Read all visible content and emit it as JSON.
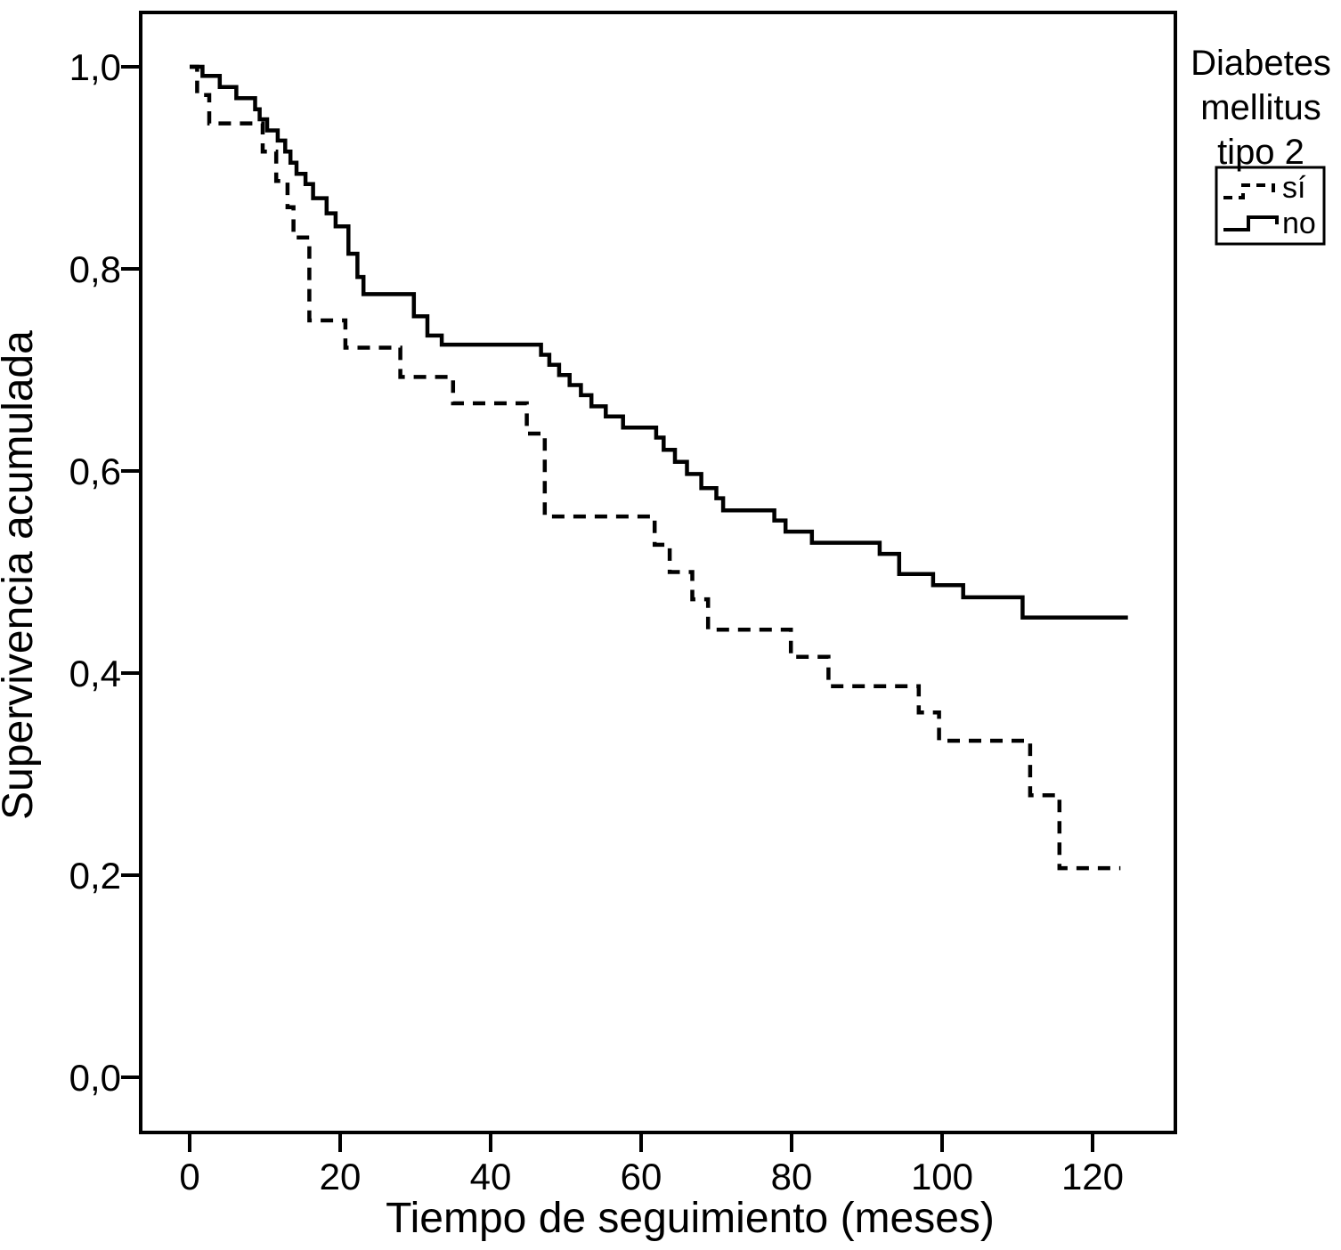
{
  "figure": {
    "background": "#ffffff",
    "foreground": "#000000"
  },
  "chart_data": {
    "type": "line",
    "subtype": "kaplan_meier_step",
    "title": "",
    "xlabel": "Tiempo de seguimiento (meses)",
    "ylabel": "Supervivencia acumulada",
    "xlim": [
      -6.5,
      131
    ],
    "ylim": [
      -0.055,
      1.055
    ],
    "grid": false,
    "legend_position": "outside-top-right",
    "x_tick_values": [
      0,
      20,
      40,
      60,
      80,
      100,
      120
    ],
    "x_tick_labels": [
      "0",
      "20",
      "40",
      "60",
      "80",
      "100",
      "120"
    ],
    "y_tick_values": [
      1.0,
      0.8,
      0.6,
      0.4,
      0.2,
      0.0
    ],
    "y_tick_labels": [
      "1,0",
      "0,8",
      "0,6",
      "0,4",
      "0,2",
      "0,0"
    ],
    "series": [
      {
        "name": "sí",
        "line_style": "dashed",
        "color": "#000000",
        "end_t": 123.7,
        "points": [
          [
            0,
            1.0
          ],
          [
            1.0,
            0.972
          ],
          [
            2.6,
            0.944
          ],
          [
            9.7,
            0.916
          ],
          [
            11.5,
            0.887
          ],
          [
            13.0,
            0.861
          ],
          [
            13.8,
            0.831
          ],
          [
            15.9,
            0.749
          ],
          [
            20.7,
            0.722
          ],
          [
            28.0,
            0.693
          ],
          [
            35.0,
            0.667
          ],
          [
            44.8,
            0.637
          ],
          [
            47.2,
            0.555
          ],
          [
            61.8,
            0.527
          ],
          [
            63.8,
            0.5
          ],
          [
            66.8,
            0.473
          ],
          [
            68.9,
            0.443
          ],
          [
            79.9,
            0.416
          ],
          [
            84.9,
            0.387
          ],
          [
            96.9,
            0.361
          ],
          [
            99.6,
            0.333
          ],
          [
            111.7,
            0.279
          ],
          [
            115.6,
            0.207
          ]
        ]
      },
      {
        "name": "no",
        "line_style": "solid",
        "color": "#000000",
        "end_t": 124.7,
        "points": [
          [
            0,
            1.0
          ],
          [
            1.7,
            0.991
          ],
          [
            4.0,
            0.98
          ],
          [
            6.2,
            0.969
          ],
          [
            8.7,
            0.958
          ],
          [
            9.3,
            0.948
          ],
          [
            10.3,
            0.937
          ],
          [
            11.7,
            0.927
          ],
          [
            12.7,
            0.916
          ],
          [
            13.4,
            0.905
          ],
          [
            14.2,
            0.894
          ],
          [
            15.4,
            0.884
          ],
          [
            16.4,
            0.87
          ],
          [
            18.2,
            0.855
          ],
          [
            19.4,
            0.842
          ],
          [
            21.1,
            0.815
          ],
          [
            22.3,
            0.792
          ],
          [
            23.1,
            0.775
          ],
          [
            29.8,
            0.753
          ],
          [
            31.6,
            0.734
          ],
          [
            33.5,
            0.725
          ],
          [
            46.7,
            0.715
          ],
          [
            47.8,
            0.705
          ],
          [
            49.1,
            0.695
          ],
          [
            50.5,
            0.685
          ],
          [
            52.0,
            0.675
          ],
          [
            53.4,
            0.664
          ],
          [
            55.3,
            0.654
          ],
          [
            57.6,
            0.643
          ],
          [
            62.0,
            0.633
          ],
          [
            63.0,
            0.621
          ],
          [
            64.5,
            0.609
          ],
          [
            66.1,
            0.597
          ],
          [
            68.0,
            0.583
          ],
          [
            70.0,
            0.573
          ],
          [
            70.9,
            0.561
          ],
          [
            77.7,
            0.551
          ],
          [
            79.2,
            0.54
          ],
          [
            82.7,
            0.529
          ],
          [
            91.7,
            0.518
          ],
          [
            94.3,
            0.498
          ],
          [
            98.8,
            0.487
          ],
          [
            102.8,
            0.475
          ],
          [
            110.7,
            0.455
          ]
        ]
      }
    ]
  },
  "legend": {
    "title_lines": [
      "Diabetes",
      "mellitus",
      "tipo 2"
    ],
    "entries": [
      {
        "label": "sí",
        "line_style": "dashed"
      },
      {
        "label": "no",
        "line_style": "solid"
      }
    ]
  }
}
